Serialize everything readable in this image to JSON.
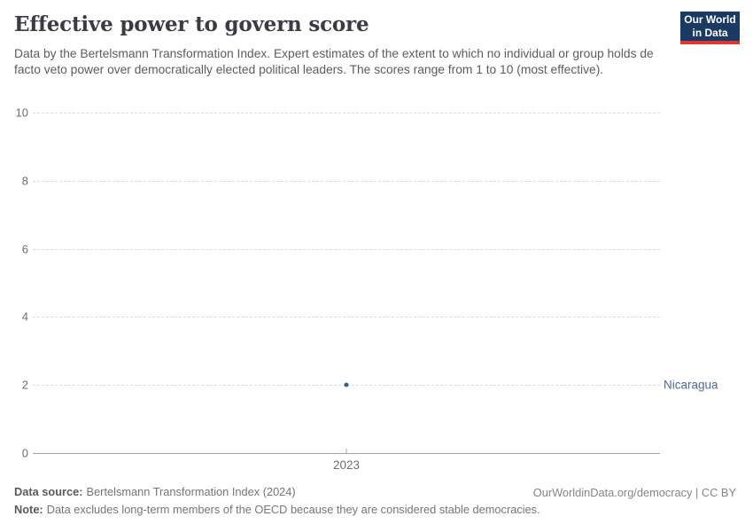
{
  "header": {
    "title": "Effective power to govern score",
    "subtitle": "Data by the Bertelsmann Transformation Index. Expert estimates of the extent to which no individual or group holds de facto veto power over democratically elected political leaders. The scores range from 1 to 10 (most effective)."
  },
  "logo": {
    "line1": "Our World",
    "line2": "in Data",
    "bg_color": "#1a3a63",
    "bar_color": "#d93a2b"
  },
  "chart_data": {
    "type": "scatter",
    "title": "Effective power to govern score",
    "x": [
      2023
    ],
    "xtick_labels": [
      "2023"
    ],
    "series": [
      {
        "name": "Nicaragua",
        "values": [
          2
        ],
        "color": "#3d5c92",
        "label_color": "#4c6a9c"
      }
    ],
    "xlabel": "",
    "ylabel": "",
    "ylim": [
      0,
      10
    ],
    "yticks": [
      0,
      2,
      4,
      6,
      8,
      10
    ],
    "grid": "horizontal-dashed",
    "legend_position": "right-of-point"
  },
  "colors": {
    "grid": "#dcdcdc",
    "axis": "#a3a3a3",
    "tick_text": "#6e6e6e"
  },
  "footer": {
    "source_label": "Data source:",
    "source_value": "Bertelsmann Transformation Index (2024)",
    "note_label": "Note:",
    "note_value": "Data excludes long-term members of the OECD because they are considered stable democracies.",
    "rights": "OurWorldinData.org/democracy | CC BY"
  }
}
